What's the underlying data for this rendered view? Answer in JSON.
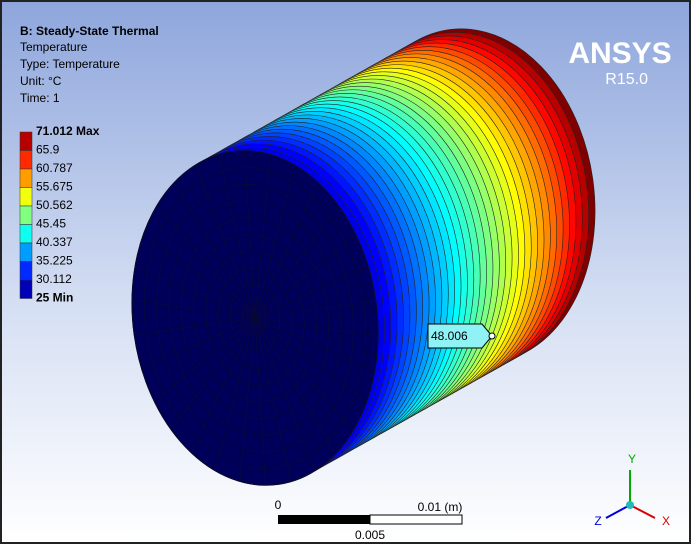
{
  "header": {
    "title": "B: Steady-State Thermal",
    "lines": [
      "Temperature",
      "Type: Temperature",
      "Unit: °C",
      "Time: 1"
    ]
  },
  "legend": {
    "labels": [
      "71.012 Max",
      "65.9",
      "60.787",
      "55.675",
      "50.562",
      "45.45",
      "40.337",
      "35.225",
      "30.112",
      "25 Min"
    ]
  },
  "logo": {
    "name": "ANSYS",
    "version": "R15.0"
  },
  "probe": {
    "label": "48.006"
  },
  "scale_bar": {
    "labels": [
      "0",
      "0.01 (m)",
      "0.005"
    ]
  },
  "triad": {
    "labels": [
      "Y",
      "Z",
      "X"
    ]
  }
}
